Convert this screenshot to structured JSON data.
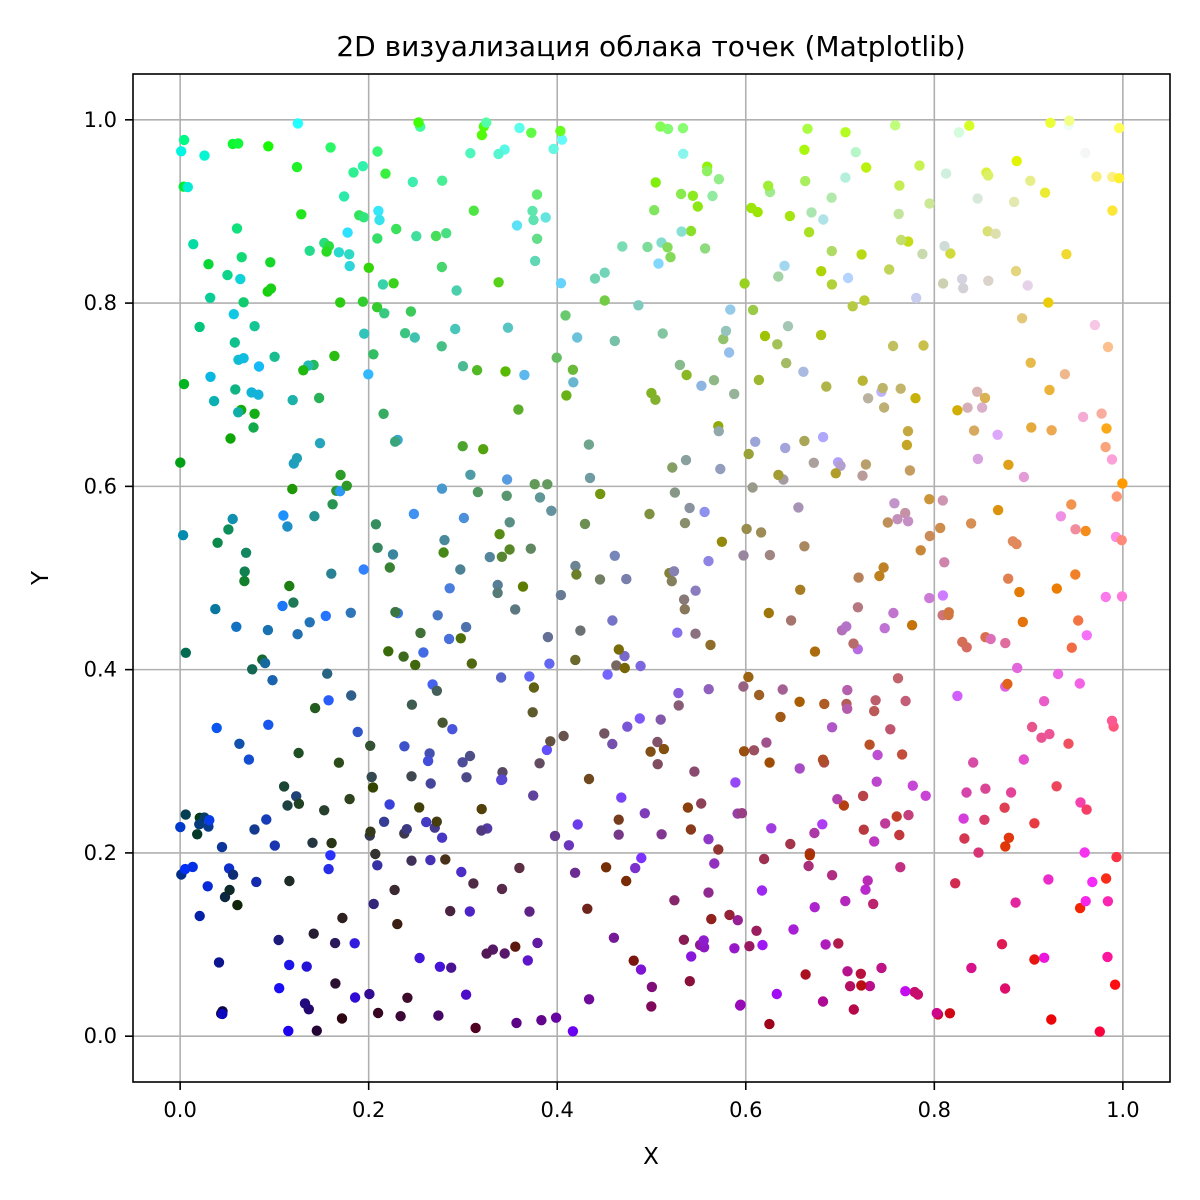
{
  "chart_data": {
    "type": "scatter",
    "title": "2D визуализация облака точек (Matplotlib)",
    "xlabel": "X",
    "ylabel": "Y",
    "xlim": [
      -0.05,
      1.05
    ],
    "ylim": [
      -0.05,
      1.05
    ],
    "xticks": [
      "0.0",
      "0.2",
      "0.4",
      "0.6",
      "0.8",
      "1.0"
    ],
    "yticks": [
      "0.0",
      "0.2",
      "0.4",
      "0.6",
      "0.8",
      "1.0"
    ],
    "grid": true,
    "point_color_note": "each point colored RGB-like by its coordinates",
    "point_count_approx": 800,
    "seed": 20240501
  }
}
